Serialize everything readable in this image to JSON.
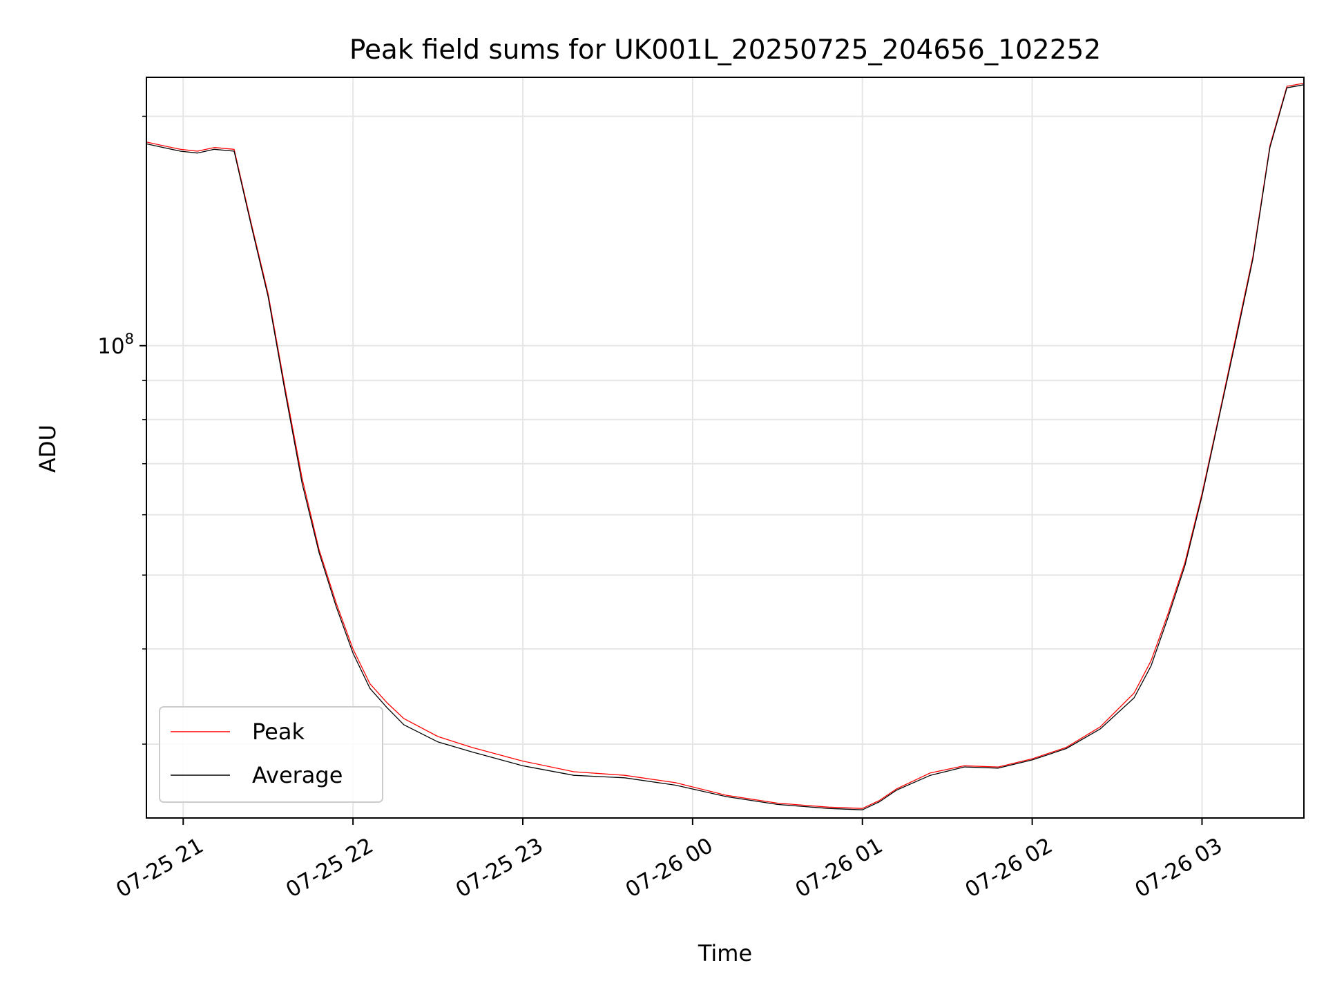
{
  "chart_data": {
    "type": "line",
    "title": "Peak field sums for UK001L_20250725_204656_102252",
    "xlabel": "Time",
    "ylabel": "ADU",
    "yscale": "log",
    "ylim": [
      24000000,
      225000000
    ],
    "xlim": [
      "2025-07-25 20:47",
      "2025-07-26 03:36"
    ],
    "grid": true,
    "legend_position": "lower-left",
    "x_tick_labels": [
      "07-25 21",
      "07-25 22",
      "07-25 23",
      "07-26 00",
      "07-26 01",
      "07-26 02",
      "07-26 03"
    ],
    "x_tick_values": [
      "2025-07-25 21:00",
      "2025-07-25 22:00",
      "2025-07-25 23:00",
      "2025-07-26 00:00",
      "2025-07-26 01:00",
      "2025-07-26 02:00",
      "2025-07-26 03:00"
    ],
    "y_tick_label": "10^8",
    "y_tick_value": 100000000,
    "series": [
      {
        "name": "Peak",
        "color": "#ff0000",
        "x": [
          "2025-07-25 20:47",
          "2025-07-25 20:53",
          "2025-07-25 20:59",
          "2025-07-25 21:05",
          "2025-07-25 21:11",
          "2025-07-25 21:18",
          "2025-07-25 21:24",
          "2025-07-25 21:30",
          "2025-07-25 21:36",
          "2025-07-25 21:42",
          "2025-07-25 21:48",
          "2025-07-25 21:54",
          "2025-07-25 22:00",
          "2025-07-25 22:06",
          "2025-07-25 22:12",
          "2025-07-25 22:18",
          "2025-07-25 22:30",
          "2025-07-25 22:42",
          "2025-07-25 23:00",
          "2025-07-25 23:18",
          "2025-07-25 23:36",
          "2025-07-25 23:54",
          "2025-07-26 00:12",
          "2025-07-26 00:30",
          "2025-07-26 00:48",
          "2025-07-26 01:00",
          "2025-07-26 01:06",
          "2025-07-26 01:12",
          "2025-07-26 01:24",
          "2025-07-26 01:36",
          "2025-07-26 01:48",
          "2025-07-26 02:00",
          "2025-07-26 02:12",
          "2025-07-26 02:24",
          "2025-07-26 02:36",
          "2025-07-26 02:42",
          "2025-07-26 02:48",
          "2025-07-26 02:54",
          "2025-07-26 03:00",
          "2025-07-26 03:06",
          "2025-07-26 03:12",
          "2025-07-26 03:18",
          "2025-07-26 03:24",
          "2025-07-26 03:30",
          "2025-07-26 03:36"
        ],
        "values": [
          185000000,
          183000000,
          181000000,
          180000000,
          182000000,
          181000000,
          145000000,
          117000000,
          88000000,
          67000000,
          54000000,
          46000000,
          40000000,
          36000000,
          34000000,
          32400000,
          30700000,
          29700000,
          28500000,
          27600000,
          27300000,
          26700000,
          25700000,
          25100000,
          24800000,
          24700000,
          25300000,
          26200000,
          27500000,
          28100000,
          28000000,
          28700000,
          29700000,
          31600000,
          35000000,
          38600000,
          44500000,
          52000000,
          64000000,
          81000000,
          103000000,
          131000000,
          183000000,
          219000000,
          221000000
        ]
      },
      {
        "name": "Average",
        "color": "#000000",
        "x": [
          "2025-07-25 20:47",
          "2025-07-25 20:53",
          "2025-07-25 20:59",
          "2025-07-25 21:05",
          "2025-07-25 21:11",
          "2025-07-25 21:18",
          "2025-07-25 21:24",
          "2025-07-25 21:30",
          "2025-07-25 21:36",
          "2025-07-25 21:42",
          "2025-07-25 21:48",
          "2025-07-25 21:54",
          "2025-07-25 22:00",
          "2025-07-25 22:06",
          "2025-07-25 22:12",
          "2025-07-25 22:18",
          "2025-07-25 22:30",
          "2025-07-25 22:42",
          "2025-07-25 23:00",
          "2025-07-25 23:18",
          "2025-07-25 23:36",
          "2025-07-25 23:54",
          "2025-07-26 00:12",
          "2025-07-26 00:30",
          "2025-07-26 00:48",
          "2025-07-26 01:00",
          "2025-07-26 01:06",
          "2025-07-26 01:12",
          "2025-07-26 01:24",
          "2025-07-26 01:36",
          "2025-07-26 01:48",
          "2025-07-26 02:00",
          "2025-07-26 02:12",
          "2025-07-26 02:24",
          "2025-07-26 02:36",
          "2025-07-26 02:42",
          "2025-07-26 02:48",
          "2025-07-26 02:54",
          "2025-07-26 03:00",
          "2025-07-26 03:06",
          "2025-07-26 03:12",
          "2025-07-26 03:18",
          "2025-07-26 03:24",
          "2025-07-26 03:30",
          "2025-07-26 03:36"
        ],
        "values": [
          184000000,
          182000000,
          180000000,
          179000000,
          181000000,
          180000000,
          144000000,
          116000000,
          87000000,
          66000000,
          53500000,
          45500000,
          39500000,
          35500000,
          33500000,
          31800000,
          30200000,
          29300000,
          28100000,
          27300000,
          27100000,
          26500000,
          25600000,
          25000000,
          24700000,
          24600000,
          25200000,
          26100000,
          27300000,
          28000000,
          27900000,
          28600000,
          29600000,
          31400000,
          34500000,
          38000000,
          44000000,
          51500000,
          63500000,
          80500000,
          102000000,
          130000000,
          182000000,
          218000000,
          220000000
        ]
      }
    ]
  }
}
